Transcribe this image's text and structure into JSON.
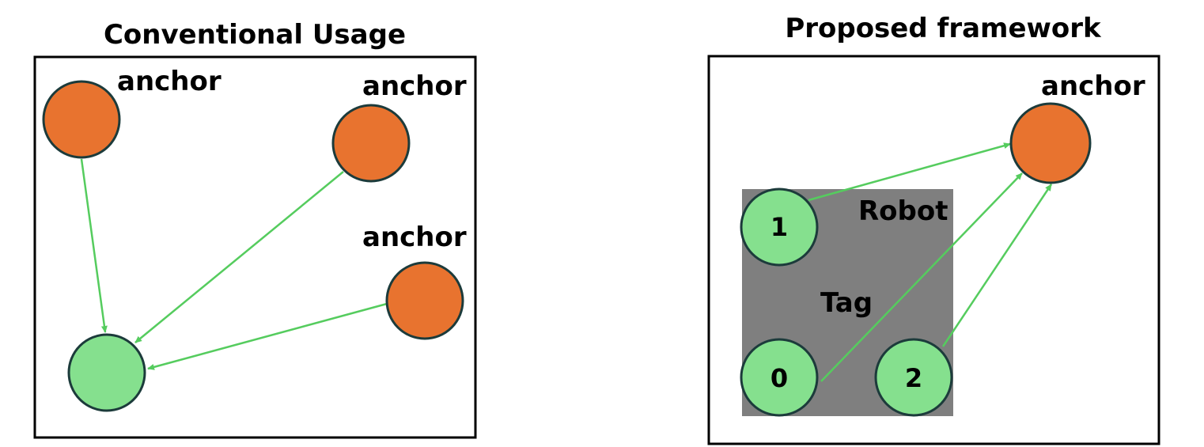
{
  "colors": {
    "anchor_fill": "#E8732F",
    "tag_fill": "#85E08E",
    "edge": "#55CC5E",
    "robot_fill": "#7F7F7F"
  },
  "left_panel": {
    "title": "Conventional Usage",
    "anchor_labels": [
      "anchor",
      "anchor",
      "anchor"
    ]
  },
  "right_panel": {
    "title": "Proposed framework",
    "anchor_label": "anchor",
    "robot_label": "Robot",
    "tag_label": "Tag",
    "tag_ids": [
      "1",
      "0",
      "2"
    ]
  }
}
